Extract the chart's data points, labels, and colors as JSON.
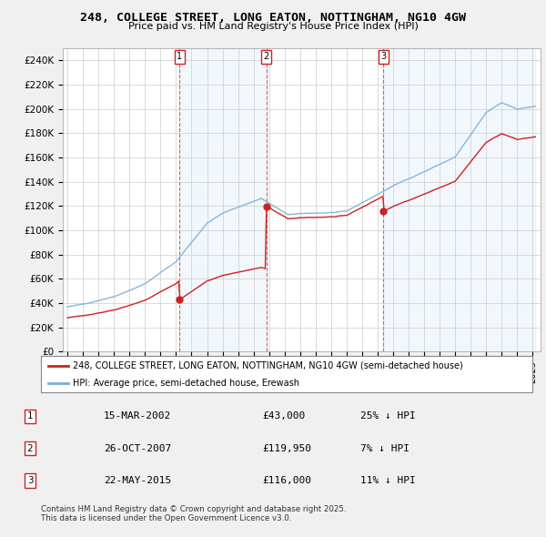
{
  "title": "248, COLLEGE STREET, LONG EATON, NOTTINGHAM, NG10 4GW",
  "subtitle": "Price paid vs. HM Land Registry's House Price Index (HPI)",
  "hpi_color": "#7bafd4",
  "price_color": "#cc2222",
  "shade_color": "#ddeeff",
  "legend_label_price": "248, COLLEGE STREET, LONG EATON, NOTTINGHAM, NG10 4GW (semi-detached house)",
  "legend_label_hpi": "HPI: Average price, semi-detached house, Erewash",
  "sale1_date": "15-MAR-2002",
  "sale1_price": 43000,
  "sale1_year": 2002.21,
  "sale1_hpi_text": "25% ↓ HPI",
  "sale2_date": "26-OCT-2007",
  "sale2_price": 119950,
  "sale2_year": 2007.83,
  "sale2_hpi_text": "7% ↓ HPI",
  "sale3_date": "22-MAY-2015",
  "sale3_price": 116000,
  "sale3_year": 2015.38,
  "sale3_hpi_text": "11% ↓ HPI",
  "footer": "Contains HM Land Registry data © Crown copyright and database right 2025.\nThis data is licensed under the Open Government Licence v3.0.",
  "background_color": "#f0f0f0",
  "plot_bg_color": "#ffffff",
  "ylim": [
    0,
    250000
  ],
  "xlim_min": 1994.7,
  "xlim_max": 2025.5
}
